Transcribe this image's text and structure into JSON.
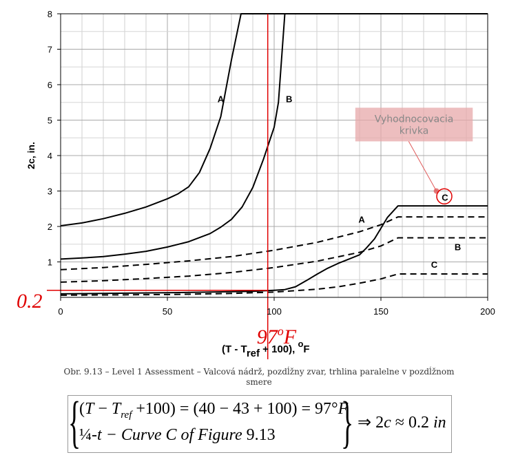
{
  "chart_data": {
    "type": "line",
    "ylabel": "2c, in.",
    "xlabel_parts": {
      "a": "(T  - T",
      "sub": "ref",
      "b": " + 100), ",
      "sup": "o",
      "c": "F"
    },
    "xlim": [
      0,
      200
    ],
    "ylim": [
      0,
      8
    ],
    "xticks": [
      0,
      50,
      100,
      150,
      200
    ],
    "yticks": [
      1,
      2,
      3,
      4,
      5,
      6,
      7,
      8
    ],
    "grid": true,
    "series": [
      {
        "name": "A",
        "style": "solid",
        "x": [
          0,
          10,
          20,
          30,
          40,
          50,
          55,
          60,
          65,
          70,
          75,
          80,
          84.5,
          200
        ],
        "y": [
          2.02,
          2.1,
          2.22,
          2.37,
          2.55,
          2.78,
          2.92,
          3.12,
          3.52,
          4.2,
          5.1,
          6.7,
          8,
          8
        ]
      },
      {
        "name": "B",
        "style": "solid",
        "x": [
          0,
          10,
          20,
          30,
          40,
          50,
          60,
          70,
          75,
          80,
          85,
          90,
          95,
          100,
          102,
          105,
          200
        ],
        "y": [
          1.08,
          1.11,
          1.15,
          1.22,
          1.3,
          1.42,
          1.57,
          1.8,
          1.98,
          2.2,
          2.55,
          3.1,
          3.9,
          4.8,
          5.5,
          8,
          8
        ]
      },
      {
        "name": "C",
        "style": "solid",
        "x": [
          0,
          50,
          90,
          100,
          105,
          110,
          115,
          120,
          125,
          130,
          135,
          140,
          143,
          147,
          150,
          153,
          158,
          200
        ],
        "y": [
          0.1,
          0.13,
          0.17,
          0.2,
          0.22,
          0.3,
          0.47,
          0.65,
          0.82,
          0.96,
          1.08,
          1.2,
          1.38,
          1.65,
          1.95,
          2.25,
          2.58,
          2.58
        ]
      },
      {
        "name": "A",
        "style": "dashed",
        "x": [
          0,
          20,
          40,
          60,
          80,
          100,
          120,
          140,
          150,
          158,
          200
        ],
        "y": [
          0.78,
          0.84,
          0.93,
          1.03,
          1.15,
          1.33,
          1.55,
          1.85,
          2.05,
          2.27,
          2.27
        ]
      },
      {
        "name": "B",
        "style": "dashed",
        "x": [
          0,
          20,
          40,
          60,
          80,
          100,
          120,
          140,
          150,
          158,
          200
        ],
        "y": [
          0.43,
          0.47,
          0.53,
          0.6,
          0.7,
          0.84,
          1.02,
          1.27,
          1.45,
          1.68,
          1.68
        ]
      },
      {
        "name": "C",
        "style": "dashed",
        "x": [
          0,
          50,
          80,
          100,
          110,
          120,
          130,
          140,
          150,
          158,
          200
        ],
        "y": [
          0.06,
          0.08,
          0.11,
          0.15,
          0.19,
          0.23,
          0.3,
          0.4,
          0.52,
          0.66,
          0.66
        ]
      }
    ],
    "curve_labels": [
      {
        "text": "A",
        "x": 75,
        "y": 5.6
      },
      {
        "text": "B",
        "x": 107,
        "y": 5.6
      },
      {
        "text": "A",
        "x": 141,
        "y": 2.2
      },
      {
        "text": "B",
        "x": 186,
        "y": 1.43
      },
      {
        "text": "C",
        "x": 175,
        "y": 0.93
      },
      {
        "text": "C",
        "x": 180,
        "y": 2.83
      }
    ],
    "annotations": {
      "note_box": {
        "lines": [
          "Vyhodnocovacia",
          "krivka"
        ],
        "x_range": [
          138,
          193
        ],
        "y_range": [
          4.4,
          5.35
        ],
        "color": "#e7a8aa",
        "text_color": "#888888"
      },
      "marker_point": {
        "x": 176,
        "y": 3.0,
        "color": "#e05a5a"
      },
      "circle_center": {
        "x": 180,
        "y": 2.83,
        "color": "#e00000"
      },
      "vline": {
        "x": 97,
        "label": "97",
        "label_sup": "o",
        "label_end": "F",
        "color": "#e00000"
      },
      "hline": {
        "y": 0.2,
        "label": "0.2",
        "color": "#e00000"
      }
    },
    "accent_color": "#e00000"
  },
  "caption": {
    "line1": "Obr. 9.13 – Level 1 Assessment – Valcová nádrž, pozdĺžny zvar, trhlina paralelne v pozdĺžnom",
    "line2": "smere"
  },
  "formula": {
    "line1_pre": "(",
    "line1_T": "T",
    "line1_minus": " − ",
    "line1_Tref": "T",
    "line1_ref": "ref",
    "line1_mid": " +100",
    "line1_eq": ") = (40 − 43 + 100) = 97°",
    "line1_F": "F",
    "line2_q": "¼",
    "line2_t": "-t − Curve C of  Figure",
    "line2_num": " 9.13",
    "result_arrow": "⇒ 2",
    "result_c": "c",
    "result_val": " ≈ 0.2 ",
    "result_in": "in"
  }
}
